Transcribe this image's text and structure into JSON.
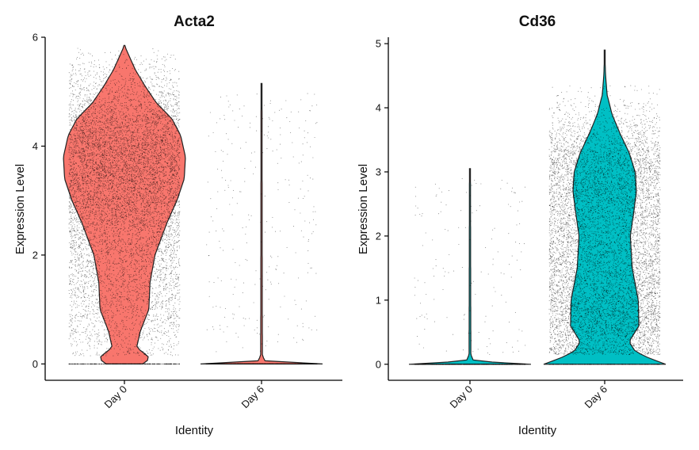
{
  "chart_data": [
    {
      "type": "violin",
      "title": "Acta2",
      "xlabel": "Identity",
      "ylabel": "Expression Level",
      "categories": [
        "Day 0",
        "Day 6"
      ],
      "ylim": [
        -0.3,
        6.0
      ],
      "yticks": [
        0,
        2,
        4,
        6
      ],
      "grid": false,
      "legend": "none",
      "colors": [
        "#f8766d",
        "#f8766d"
      ],
      "jitter_points": true,
      "violins": [
        {
          "category": "Day 0",
          "min": 0,
          "max": 5.85,
          "density_profile": [
            [
              0,
              0.3
            ],
            [
              0.1,
              0.42
            ],
            [
              0.2,
              0.32
            ],
            [
              0.3,
              0.2
            ],
            [
              0.6,
              0.26
            ],
            [
              1.0,
              0.4
            ],
            [
              1.5,
              0.42
            ],
            [
              2.0,
              0.5
            ],
            [
              2.6,
              0.7
            ],
            [
              3.0,
              0.86
            ],
            [
              3.4,
              0.98
            ],
            [
              3.8,
              1.0
            ],
            [
              4.2,
              0.92
            ],
            [
              4.5,
              0.78
            ],
            [
              4.8,
              0.52
            ],
            [
              5.1,
              0.34
            ],
            [
              5.4,
              0.18
            ],
            [
              5.7,
              0.06
            ],
            [
              5.85,
              0.0
            ]
          ],
          "point_max": 5.8,
          "points_zero_fraction": 0.05,
          "point_count": 9000
        },
        {
          "category": "Day 6",
          "min": 0,
          "max": 5.15,
          "density_profile": [
            [
              0,
              1.0
            ],
            [
              0.05,
              0.06
            ],
            [
              0.15,
              0.015
            ],
            [
              1.0,
              0.012
            ],
            [
              5.15,
              0.008
            ]
          ],
          "point_max": 5.0,
          "points_zero_fraction": 0.8,
          "point_count": 1400
        }
      ]
    },
    {
      "type": "violin",
      "title": "Cd36",
      "xlabel": "Identity",
      "ylabel": "Expression Level",
      "categories": [
        "Day 0",
        "Day 6"
      ],
      "ylim": [
        -0.25,
        5.1
      ],
      "yticks": [
        0,
        1,
        2,
        3,
        4,
        5
      ],
      "grid": false,
      "legend": "none",
      "colors": [
        "#00bfc4",
        "#00bfc4"
      ],
      "jitter_points": true,
      "violins": [
        {
          "category": "Day 0",
          "min": 0,
          "max": 3.05,
          "density_profile": [
            [
              0,
              1.0
            ],
            [
              0.05,
              0.06
            ],
            [
              0.15,
              0.015
            ],
            [
              1.0,
              0.012
            ],
            [
              3.05,
              0.008
            ]
          ],
          "point_max": 2.9,
          "points_zero_fraction": 0.85,
          "point_count": 1000
        },
        {
          "category": "Day 6",
          "min": 0,
          "max": 4.9,
          "density_profile": [
            [
              0,
              1.0
            ],
            [
              0.1,
              0.72
            ],
            [
              0.2,
              0.5
            ],
            [
              0.35,
              0.4
            ],
            [
              0.6,
              0.56
            ],
            [
              1.0,
              0.55
            ],
            [
              1.5,
              0.45
            ],
            [
              2.0,
              0.42
            ],
            [
              2.4,
              0.48
            ],
            [
              2.7,
              0.52
            ],
            [
              3.0,
              0.5
            ],
            [
              3.3,
              0.4
            ],
            [
              3.6,
              0.25
            ],
            [
              3.9,
              0.12
            ],
            [
              4.2,
              0.04
            ],
            [
              4.5,
              0.015
            ],
            [
              4.9,
              0.0
            ]
          ],
          "point_max": 4.35,
          "points_zero_fraction": 0.03,
          "point_count": 9000
        }
      ]
    }
  ]
}
